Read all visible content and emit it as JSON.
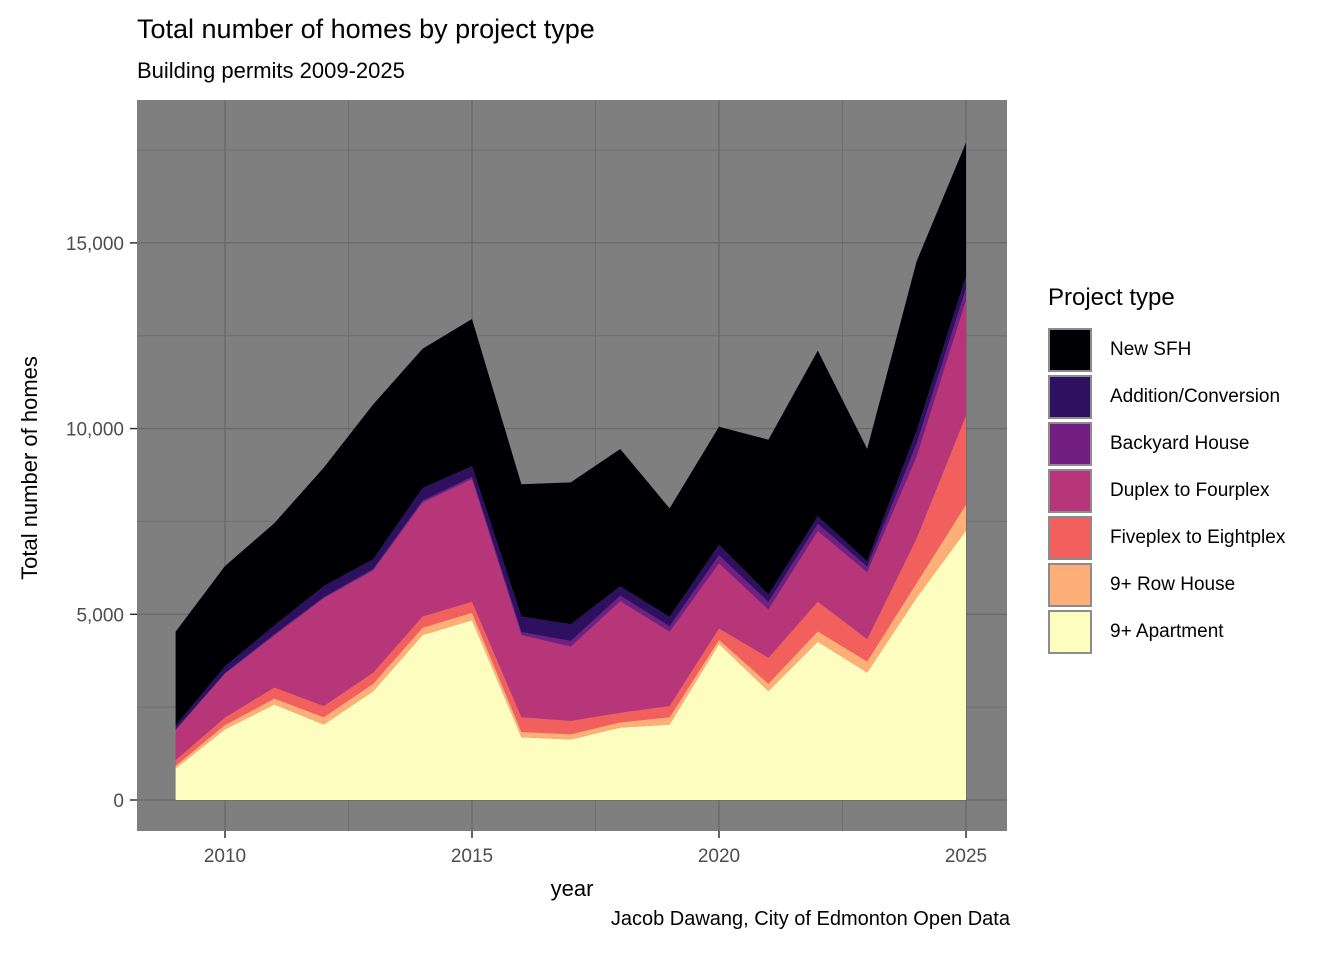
{
  "page": {
    "title": "Total number of homes by project type",
    "subtitle": "Building permits 2009-2025",
    "caption": "Jacob Dawang, City of Edmonton Open Data"
  },
  "axes": {
    "x_label": "year",
    "y_label": "Total number of homes",
    "x_major_ticks": [
      {
        "value": 2010,
        "label": "2010"
      },
      {
        "value": 2015,
        "label": "2015"
      },
      {
        "value": 2020,
        "label": "2020"
      },
      {
        "value": 2025,
        "label": "2025"
      }
    ],
    "x_minor_ticks": [
      2012.5,
      2017.5,
      2022.5
    ],
    "y_major_ticks": [
      {
        "value": 0,
        "label": "0"
      },
      {
        "value": 5000,
        "label": "5,000"
      },
      {
        "value": 10000,
        "label": "10,000"
      },
      {
        "value": 15000,
        "label": "15,000"
      }
    ],
    "y_minor_ticks": [
      2500,
      7500,
      12500,
      17500
    ]
  },
  "legend": {
    "title": "Project type",
    "entries": [
      {
        "label": "New SFH",
        "color": "#000004"
      },
      {
        "label": "Addition/Conversion",
        "color": "#2D1160"
      },
      {
        "label": "Backyard House",
        "color": "#721F81"
      },
      {
        "label": "Duplex to Fourplex",
        "color": "#B63679"
      },
      {
        "label": "Fiveplex to Eightplex",
        "color": "#F1605D"
      },
      {
        "label": "9+ Row House",
        "color": "#FEAF77"
      },
      {
        "label": "9+ Apartment",
        "color": "#FCFDBF"
      }
    ]
  },
  "colors": {
    "background": "#ffffff",
    "panel_bg": "#7f7f7f",
    "grid_major": "#696969",
    "grid_minor": "#6f6f6f",
    "tick_mark": "#333333",
    "tick_label": "#4d4d4d",
    "text": "#000000",
    "legend_key_border": "#8c8c8c"
  },
  "chart_data": {
    "type": "area",
    "stacked": true,
    "title": "Total number of homes by project type",
    "subtitle": "Building permits 2009-2025",
    "xlabel": "year",
    "ylabel": "Total number of homes",
    "x_range": [
      2009,
      2025
    ],
    "ylim": [
      0,
      18800
    ],
    "grid": true,
    "legend_position": "right",
    "x": [
      2009,
      2010,
      2011,
      2012,
      2013,
      2014,
      2015,
      2016,
      2017,
      2018,
      2019,
      2020,
      2021,
      2022,
      2023,
      2024,
      2025
    ],
    "stack_order_note": "series listed top-of-stack first; 9+ Apartment is the bottom band",
    "series": [
      {
        "name": "New SFH",
        "color": "#000004",
        "values": [
          2525,
          2700,
          2755,
          3190,
          4170,
          3750,
          3960,
          3560,
          3820,
          3700,
          2920,
          3180,
          4170,
          4460,
          3020,
          4560,
          3600
        ]
      },
      {
        "name": "Addition/Conversion",
        "color": "#2D1160",
        "values": [
          110,
          180,
          240,
          300,
          260,
          340,
          290,
          420,
          450,
          250,
          250,
          280,
          200,
          200,
          150,
          350,
          330
        ]
      },
      {
        "name": "Backyard House",
        "color": "#721F81",
        "values": [
          10,
          20,
          30,
          30,
          40,
          50,
          60,
          80,
          150,
          150,
          150,
          220,
          200,
          200,
          150,
          350,
          320
        ]
      },
      {
        "name": "Duplex to Fourplex",
        "color": "#B63679",
        "values": [
          810,
          1180,
          1400,
          2900,
          2750,
          3070,
          3300,
          2210,
          2000,
          3000,
          2000,
          1750,
          1300,
          1900,
          1800,
          2200,
          3100
        ]
      },
      {
        "name": "Fiveplex to Eightplex",
        "color": "#F1605D",
        "values": [
          155,
          200,
          300,
          300,
          300,
          300,
          300,
          400,
          360,
          260,
          300,
          310,
          700,
          800,
          600,
          1200,
          2400
        ]
      },
      {
        "name": "9+ Row House",
        "color": "#FEAF77",
        "values": [
          70,
          120,
          160,
          200,
          200,
          200,
          200,
          140,
          140,
          140,
          200,
          110,
          200,
          280,
          300,
          400,
          700
        ]
      },
      {
        "name": "9+ Apartment",
        "color": "#FCFDBF",
        "values": [
          850,
          1900,
          2570,
          2030,
          2930,
          4440,
          4840,
          1690,
          1630,
          1950,
          2030,
          4200,
          2930,
          4260,
          3430,
          5440,
          7250
        ]
      }
    ],
    "totals": [
      4530,
      6300,
      7455,
      8950,
      10650,
      12150,
      12950,
      8500,
      8550,
      9450,
      7850,
      10050,
      9700,
      12100,
      9450,
      14500,
      17700
    ]
  }
}
